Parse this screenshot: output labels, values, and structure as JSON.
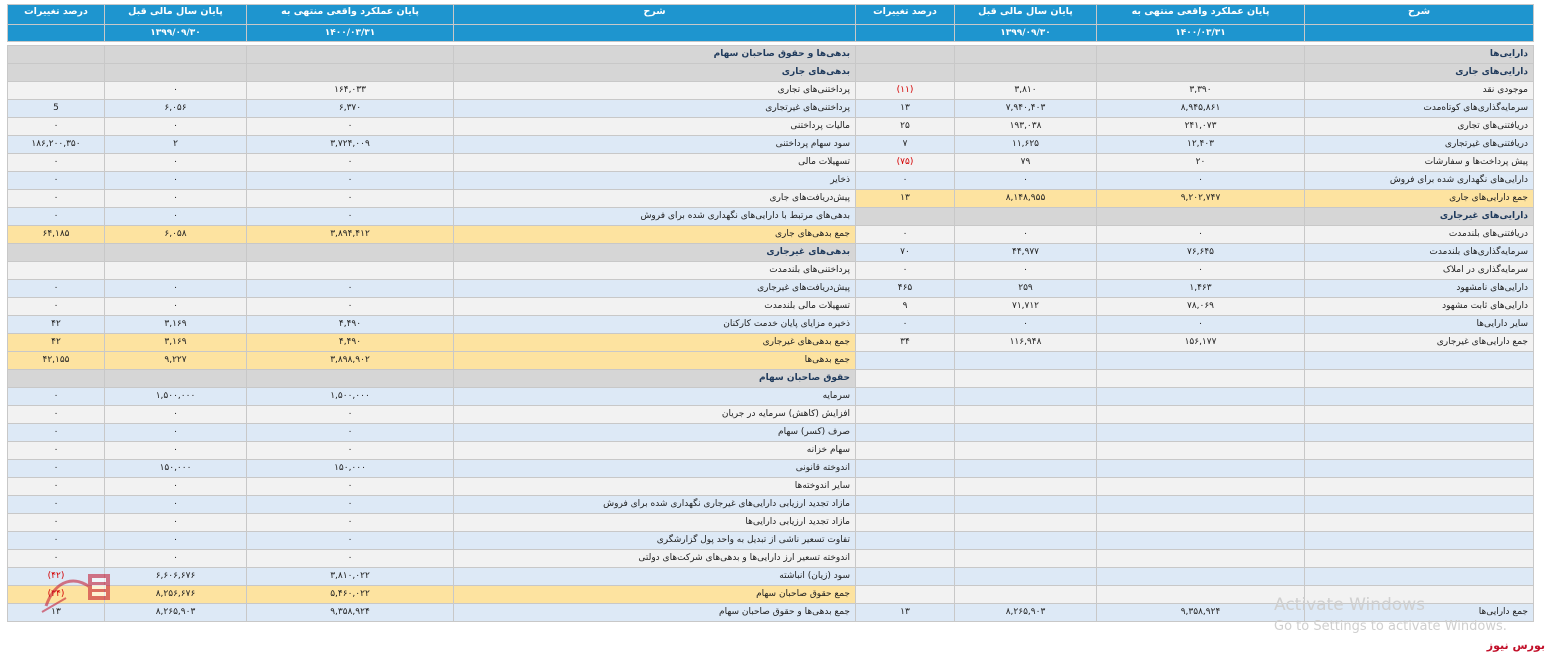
{
  "headers": {
    "sharh": "شرح",
    "actual": "پایان عملکرد واقعی منتهی به",
    "prev": "پایان سال مالی قبل",
    "pct": "درصد تغییرات",
    "actual_date": "۱۴۰۰/۰۳/۳۱",
    "prev_date": "۱۳۹۹/۰۹/۳۰"
  },
  "rows": [
    {
      "bg": "w",
      "a": [
        "دارایی‌ها",
        "",
        "",
        ""
      ],
      "as": "sec",
      "l": [
        "بدهی‌ها و حقوق صاحبان سهام",
        "",
        "",
        ""
      ],
      "ls": "sec"
    },
    {
      "bg": "w",
      "a": [
        "دارایی‌های جاری",
        "",
        "",
        ""
      ],
      "as": "sec",
      "l": [
        "بدهی‌های جاری",
        "",
        "",
        ""
      ],
      "ls": "sec"
    },
    {
      "bg": "w",
      "a": [
        "موجودی نقد",
        "۳,۳۹۰",
        "۳,۸۱۰",
        "(۱۱)"
      ],
      "an": true,
      "l": [
        "پرداختنی‌های تجاری",
        "۱۶۴,۰۳۳",
        "۰",
        ""
      ]
    },
    {
      "bg": "b",
      "a": [
        "سرمایه‌گذاری‌های کوتاه‌مدت",
        "۸,۹۴۵,۸۶۱",
        "۷,۹۴۰,۴۰۳",
        "۱۳"
      ],
      "l": [
        "پرداختنی‌های غیرتجاری",
        "۶,۳۷۰",
        "۶,۰۵۶",
        "5"
      ]
    },
    {
      "bg": "w",
      "a": [
        "دریافتنی‌های تجاری",
        "۲۴۱,۰۷۳",
        "۱۹۳,۰۳۸",
        "۲۵"
      ],
      "l": [
        "مالیات پرداختنی",
        "۰",
        "۰",
        "۰"
      ]
    },
    {
      "bg": "b",
      "a": [
        "دریافتنی‌های غیرتجاری",
        "۱۲,۴۰۳",
        "۱۱,۶۲۵",
        "۷"
      ],
      "l": [
        "سود سهام پرداختنی",
        "۳,۷۲۴,۰۰۹",
        "۲",
        "۱۸۶,۲۰۰,۳۵۰"
      ]
    },
    {
      "bg": "w",
      "a": [
        "پیش پرداخت‌ها و سفارشات",
        "۲۰",
        "۷۹",
        "(۷۵)"
      ],
      "an": true,
      "l": [
        "تسهیلات مالی",
        "۰",
        "۰",
        "۰"
      ]
    },
    {
      "bg": "b",
      "a": [
        "دارایی‌های نگهداری شده برای فروش",
        "۰",
        "۰",
        "۰"
      ],
      "l": [
        "ذخایر",
        "۰",
        "۰",
        "۰"
      ]
    },
    {
      "bg": "w",
      "a": [
        "جمع دارایی‌های جاری",
        "۹,۲۰۲,۷۴۷",
        "۸,۱۴۸,۹۵۵",
        "۱۳"
      ],
      "as": "tot",
      "l": [
        "پیش‌دریافت‌های جاری",
        "۰",
        "۰",
        "۰"
      ]
    },
    {
      "bg": "b",
      "a": [
        "دارایی‌های غیرجاری",
        "",
        "",
        ""
      ],
      "as": "sec",
      "l": [
        "بدهی‌های مرتبط با دارایی‌های نگهداری شده برای فروش",
        "۰",
        "۰",
        "۰"
      ]
    },
    {
      "bg": "w",
      "a": [
        "دریافتنی‌های بلندمدت",
        "۰",
        "۰",
        "۰"
      ],
      "l": [
        "جمع بدهی‌های جاری",
        "۳,۸۹۴,۴۱۲",
        "۶,۰۵۸",
        "۶۴,۱۸۵"
      ],
      "ls": "tot"
    },
    {
      "bg": "b",
      "a": [
        "سرمایه‌گذاری‌های بلندمدت",
        "۷۶,۶۴۵",
        "۴۴,۹۷۷",
        "۷۰"
      ],
      "l": [
        "بدهی‌های غیرجاری",
        "",
        "",
        ""
      ],
      "ls": "sec"
    },
    {
      "bg": "w",
      "a": [
        "سرمایه‌گذاری در املاک",
        "۰",
        "۰",
        "۰"
      ],
      "l": [
        "پرداختنی‌های بلندمدت",
        "",
        "",
        ""
      ]
    },
    {
      "bg": "b",
      "a": [
        "دارایی‌های نامشهود",
        "۱,۴۶۳",
        "۲۵۹",
        "۴۶۵"
      ],
      "l": [
        "پیش‌دریافت‌های غیرجاری",
        "۰",
        "۰",
        "۰"
      ]
    },
    {
      "bg": "w",
      "a": [
        "دارایی‌های ثابت مشهود",
        "۷۸,۰۶۹",
        "۷۱,۷۱۲",
        "۹"
      ],
      "l": [
        "تسهیلات مالی بلندمدت",
        "۰",
        "۰",
        "۰"
      ]
    },
    {
      "bg": "b",
      "a": [
        "سایر دارایی‌ها",
        "۰",
        "۰",
        "۰"
      ],
      "l": [
        "ذخیره مزایای پایان خدمت کارکنان",
        "۴,۴۹۰",
        "۳,۱۶۹",
        "۴۲"
      ]
    },
    {
      "bg": "w",
      "a": [
        "جمع دارایی‌های غیرجاری",
        "۱۵۶,۱۷۷",
        "۱۱۶,۹۴۸",
        "۳۴"
      ],
      "l": [
        "جمع بدهی‌های غیرجاری",
        "۴,۴۹۰",
        "۳,۱۶۹",
        "۴۲"
      ],
      "ls": "tot"
    },
    {
      "bg": "b",
      "a": [
        "",
        "",
        "",
        ""
      ],
      "l": [
        "جمع بدهی‌ها",
        "۳,۸۹۸,۹۰۲",
        "۹,۲۲۷",
        "۴۲,۱۵۵"
      ],
      "ls": "tot"
    },
    {
      "bg": "w",
      "a": [
        "",
        "",
        "",
        ""
      ],
      "l": [
        "حقوق صاحبان سهام",
        "",
        "",
        ""
      ],
      "ls": "sec"
    },
    {
      "bg": "b",
      "a": [
        "",
        "",
        "",
        ""
      ],
      "l": [
        "سرمایه",
        "۱,۵۰۰,۰۰۰",
        "۱,۵۰۰,۰۰۰",
        "۰"
      ]
    },
    {
      "bg": "w",
      "a": [
        "",
        "",
        "",
        ""
      ],
      "l": [
        "افزایش (کاهش) سرمایه در جریان",
        "۰",
        "۰",
        "۰"
      ]
    },
    {
      "bg": "b",
      "a": [
        "",
        "",
        "",
        ""
      ],
      "l": [
        "صرف (کسر) سهام",
        "۰",
        "۰",
        "۰"
      ]
    },
    {
      "bg": "w",
      "a": [
        "",
        "",
        "",
        ""
      ],
      "l": [
        "سهام خزانه",
        "۰",
        "۰",
        "۰"
      ]
    },
    {
      "bg": "b",
      "a": [
        "",
        "",
        "",
        ""
      ],
      "l": [
        "اندوخته قانونی",
        "۱۵۰,۰۰۰",
        "۱۵۰,۰۰۰",
        "۰"
      ]
    },
    {
      "bg": "w",
      "a": [
        "",
        "",
        "",
        ""
      ],
      "l": [
        "سایر اندوخته‌ها",
        "۰",
        "۰",
        "۰"
      ]
    },
    {
      "bg": "b",
      "a": [
        "",
        "",
        "",
        ""
      ],
      "l": [
        "مازاد تجدید ارزیابی دارایی‌های غیرجاری نگهداری شده برای فروش",
        "۰",
        "۰",
        "۰"
      ]
    },
    {
      "bg": "w",
      "a": [
        "",
        "",
        "",
        ""
      ],
      "l": [
        "مازاد تجدید ارزیابی دارایی‌ها",
        "۰",
        "۰",
        "۰"
      ]
    },
    {
      "bg": "b",
      "a": [
        "",
        "",
        "",
        ""
      ],
      "l": [
        "تفاوت تسعیر ناشی از تبدیل به واحد پول گزارشگری",
        "۰",
        "۰",
        "۰"
      ]
    },
    {
      "bg": "w",
      "a": [
        "",
        "",
        "",
        ""
      ],
      "l": [
        "اندوخته تسعیر ارز دارایی‌ها و بدهی‌های شرکت‌های دولتی",
        "۰",
        "۰",
        "۰"
      ]
    },
    {
      "bg": "b",
      "a": [
        "",
        "",
        "",
        ""
      ],
      "l": [
        "سود (زیان) انباشته",
        "۳,۸۱۰,۰۲۲",
        "۶,۶۰۶,۶۷۶",
        "(۴۲)"
      ],
      "ln": true
    },
    {
      "bg": "w",
      "a": [
        "",
        "",
        "",
        ""
      ],
      "l": [
        "جمع حقوق صاحبان سهام",
        "۵,۴۶۰,۰۲۲",
        "۸,۲۵۶,۶۷۶",
        "(۳۴)"
      ],
      "ls": "tot",
      "ln": true
    },
    {
      "bg": "b",
      "a": [
        "جمع دارایی‌ها",
        "۹,۳۵۸,۹۲۴",
        "۸,۲۶۵,۹۰۳",
        "۱۳"
      ],
      "l": [
        "جمع بدهی‌ها و حقوق صاحبان سهام",
        "۹,۳۵۸,۹۲۴",
        "۸,۲۶۵,۹۰۳",
        "۱۳"
      ]
    }
  ],
  "watermark": {
    "line1": "Activate Windows",
    "line2": "Go to Settings to activate Windows."
  },
  "brand": "بورس نیوز"
}
